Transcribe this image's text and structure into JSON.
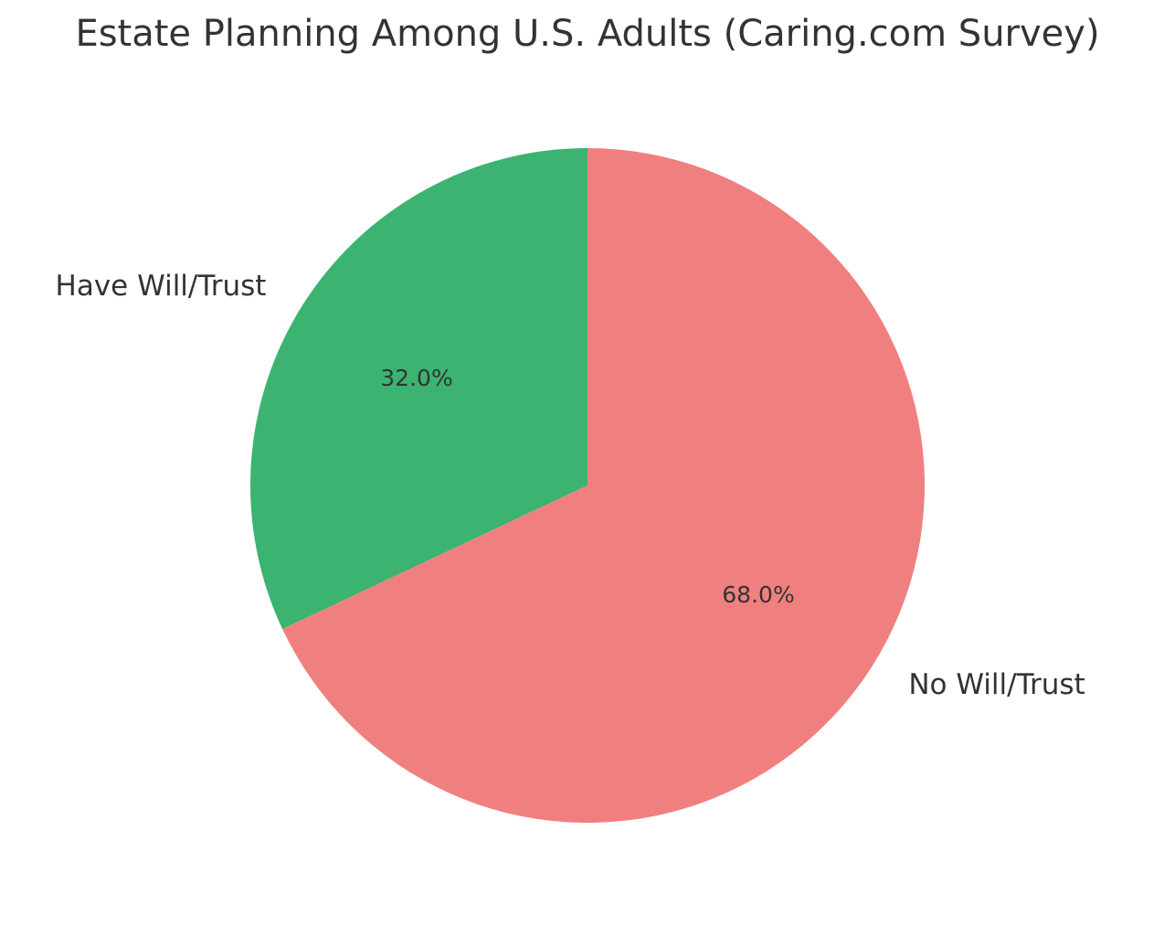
{
  "chart_data": {
    "type": "pie",
    "title": "Estate Planning Among U.S. Adults (Caring.com Survey)",
    "categories": [
      "Have Will/Trust",
      "No Will/Trust"
    ],
    "values": [
      32.0,
      68.0
    ],
    "value_labels": [
      "32.0%",
      "68.0%"
    ],
    "colors": [
      "#3cb371",
      "#f08080"
    ],
    "start_angle": 90,
    "direction": "counterclockwise",
    "legend": null
  },
  "title": "Estate Planning Among U.S. Adults (Caring.com Survey)",
  "labels": {
    "have": "Have Will/Trust",
    "no": "No Will/Trust",
    "have_pct": "32.0%",
    "no_pct": "68.0%"
  }
}
